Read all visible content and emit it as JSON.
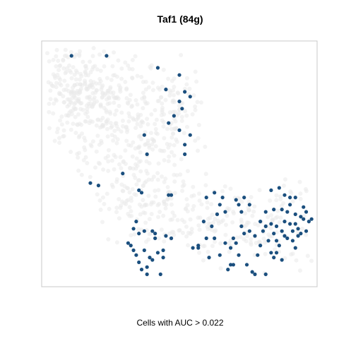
{
  "chart_data": {
    "type": "scatter",
    "title": "Taf1 (84g)",
    "caption": "Cells with AUC > 0.022",
    "axes_shown": false,
    "grid": false,
    "xlim": [
      0,
      100
    ],
    "ylim": [
      0,
      100
    ],
    "colors": {
      "background_cells": "#e9e9e9",
      "highlighted_cells": "#1b4f7e",
      "panel_border": "#c8c8c8"
    },
    "series": [
      {
        "points": [
          [
            10,
            95
          ],
          [
            23,
            95
          ],
          [
            42,
            90
          ],
          [
            50,
            87
          ],
          [
            45,
            81
          ],
          [
            52,
            80
          ],
          [
            54,
            78
          ],
          [
            50,
            76
          ],
          [
            51,
            73
          ],
          [
            48,
            70
          ],
          [
            46,
            67
          ],
          [
            50,
            64
          ],
          [
            54,
            62
          ],
          [
            37,
            62
          ],
          [
            52,
            58
          ],
          [
            38,
            54
          ],
          [
            52,
            54
          ],
          [
            29,
            46
          ],
          [
            17,
            42
          ],
          [
            20,
            41
          ],
          [
            35,
            39
          ],
          [
            36,
            38
          ],
          [
            46,
            37
          ],
          [
            47,
            37
          ],
          [
            60,
            36
          ],
          [
            65,
            33
          ],
          [
            71,
            35
          ],
          [
            72,
            33
          ],
          [
            74,
            36
          ],
          [
            73,
            30
          ],
          [
            76,
            33
          ],
          [
            84,
            39
          ],
          [
            87,
            40
          ],
          [
            89,
            37
          ],
          [
            91,
            36
          ],
          [
            93,
            36
          ],
          [
            91,
            33
          ],
          [
            96,
            32
          ],
          [
            97,
            30
          ],
          [
            95,
            28
          ],
          [
            93,
            29
          ],
          [
            90,
            30
          ],
          [
            88,
            31
          ],
          [
            85,
            31
          ],
          [
            82,
            30
          ],
          [
            80,
            26
          ],
          [
            82,
            24
          ],
          [
            84,
            25
          ],
          [
            86,
            24
          ],
          [
            88,
            22
          ],
          [
            89,
            26
          ],
          [
            91,
            25
          ],
          [
            93,
            25
          ],
          [
            92,
            22
          ],
          [
            94,
            20
          ],
          [
            96,
            27
          ],
          [
            98,
            26
          ],
          [
            99,
            27
          ],
          [
            93,
            15
          ],
          [
            85,
            21
          ],
          [
            83,
            18
          ],
          [
            80,
            16
          ],
          [
            78,
            20
          ],
          [
            74,
            21
          ],
          [
            71,
            17
          ],
          [
            70,
            19
          ],
          [
            69,
            15
          ],
          [
            67,
            17
          ],
          [
            63,
            19
          ],
          [
            62,
            24
          ],
          [
            59,
            26
          ],
          [
            60,
            19
          ],
          [
            57,
            15
          ],
          [
            61,
            11
          ],
          [
            65,
            12
          ],
          [
            68,
            6
          ],
          [
            69,
            8
          ],
          [
            75,
            8
          ],
          [
            78,
            4
          ],
          [
            77,
            5
          ],
          [
            82,
            4
          ],
          [
            84,
            13
          ],
          [
            85,
            11
          ],
          [
            88,
            10
          ],
          [
            89,
            20
          ],
          [
            86,
            18
          ],
          [
            81,
            22
          ],
          [
            76,
            22
          ],
          [
            73,
            24
          ],
          [
            72,
            12
          ],
          [
            70,
            8
          ],
          [
            57,
            16
          ],
          [
            55,
            15
          ],
          [
            37,
            22
          ],
          [
            35,
            21
          ],
          [
            40,
            22
          ],
          [
            41,
            21
          ],
          [
            37,
            14
          ],
          [
            33,
            14
          ],
          [
            34,
            12
          ],
          [
            35,
            9
          ],
          [
            36,
            6
          ],
          [
            38,
            7
          ],
          [
            39,
            11
          ],
          [
            40,
            10
          ],
          [
            42,
            13
          ],
          [
            43,
            4
          ],
          [
            38,
            4
          ],
          [
            44,
            11
          ],
          [
            41,
            19
          ],
          [
            45,
            20
          ],
          [
            47,
            19
          ],
          [
            44,
            14
          ],
          [
            32,
            16
          ],
          [
            31,
            17
          ],
          [
            33,
            23
          ],
          [
            34,
            26
          ],
          [
            63,
            38
          ],
          [
            66,
            36
          ],
          [
            67,
            30
          ],
          [
            64,
            29
          ],
          [
            90,
            19
          ],
          [
            92,
            18
          ],
          [
            94,
            23
          ],
          [
            97,
            22
          ],
          [
            95,
            21
          ],
          [
            87,
            16
          ],
          [
            86,
            13
          ],
          [
            79,
            12
          ]
        ]
      }
    ]
  }
}
